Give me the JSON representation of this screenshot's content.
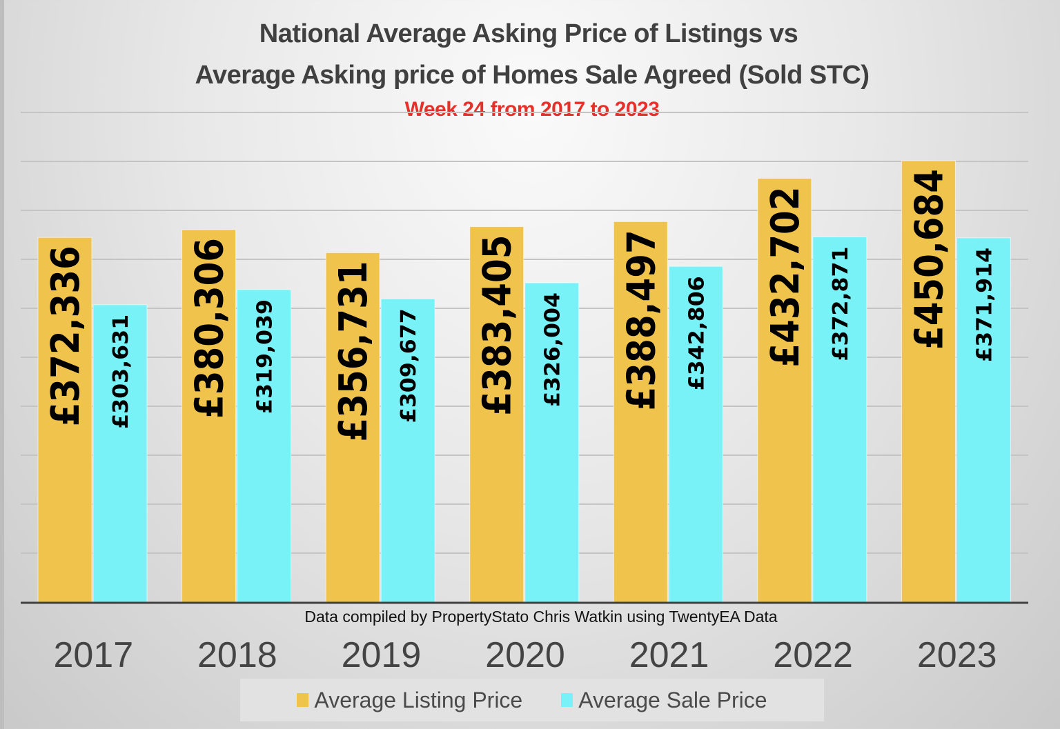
{
  "chart_data": {
    "type": "bar",
    "title": "National Average Asking Price of Listings vs",
    "title_line2": "Average Asking price of Homes Sale Agreed (Sold STC)",
    "subtitle": "Week 24 from 2017 to 2023",
    "source_note": "Data compiled by PropertyStato Chris Watkin using TwentyEA Data",
    "xlabel": "",
    "ylabel": "",
    "ylim": [
      0,
      500000
    ],
    "grid": true,
    "legend_position": "bottom",
    "categories": [
      "2017",
      "2018",
      "2019",
      "2020",
      "2021",
      "2022",
      "2023"
    ],
    "series": [
      {
        "name": "Average Listing Price",
        "color": "#f0c44c",
        "values": [
          372336,
          380306,
          356731,
          383405,
          388497,
          432702,
          450684
        ],
        "labels": [
          "£372,336",
          "£380,306",
          "£356,731",
          "£383,405",
          "£388,497",
          "£432,702",
          "£450,684"
        ]
      },
      {
        "name": "Average Sale Price",
        "color": "#78f2f6",
        "values": [
          303631,
          319039,
          309677,
          326004,
          342806,
          372871,
          371914
        ],
        "labels": [
          "£303,631",
          "£319,039",
          "£309,677",
          "£326,004",
          "£342,806",
          "£372,871",
          "£371,914"
        ]
      }
    ]
  }
}
